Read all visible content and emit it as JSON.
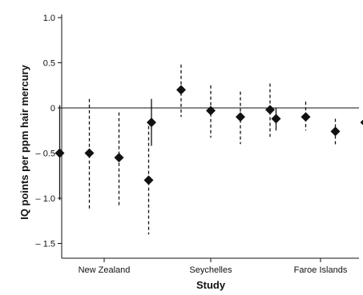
{
  "chart_data": {
    "type": "scatter",
    "title": "",
    "xlabel": "Study",
    "ylabel": "IQ points per ppm hair mercury",
    "ylim": [
      -1.55,
      1.0
    ],
    "yticks": [
      1.0,
      0.5,
      0,
      -0.5,
      -1.0,
      -1.5
    ],
    "ytick_labels": [
      "1.0",
      "0.5",
      "0",
      "– 0.5",
      "– 1.0",
      "– 1.5"
    ],
    "grid": false,
    "reference_line": 0,
    "marker": "diamond",
    "groups": [
      {
        "name": "New Zealand",
        "points": [
          {
            "estimate": -0.5,
            "lower": -1.02,
            "upper": 0.03,
            "line_style": "solid"
          },
          {
            "estimate": -0.5,
            "lower": -1.12,
            "upper": 0.1,
            "line_style": "dashed"
          },
          {
            "estimate": -0.55,
            "lower": -1.1,
            "upper": -0.05,
            "line_style": "dashed"
          },
          {
            "estimate": -0.8,
            "lower": -1.4,
            "upper": -0.2,
            "line_style": "dashed"
          }
        ]
      },
      {
        "name": "Seychelles",
        "points": [
          {
            "estimate": -0.16,
            "lower": -0.42,
            "upper": 0.1,
            "line_style": "solid"
          },
          {
            "estimate": 0.2,
            "lower": -0.1,
            "upper": 0.48,
            "line_style": "dashed"
          },
          {
            "estimate": -0.03,
            "lower": -0.33,
            "upper": 0.25,
            "line_style": "dashed"
          },
          {
            "estimate": -0.1,
            "lower": -0.4,
            "upper": 0.18,
            "line_style": "dashed"
          },
          {
            "estimate": -0.02,
            "lower": -0.32,
            "upper": 0.27,
            "line_style": "dashed"
          }
        ]
      },
      {
        "name": "Faroe Islands",
        "points": [
          {
            "estimate": -0.12,
            "lower": -0.25,
            "upper": 0.0,
            "line_style": "solid"
          },
          {
            "estimate": -0.1,
            "lower": -0.25,
            "upper": 0.07,
            "line_style": "dashed"
          },
          {
            "estimate": -0.26,
            "lower": -0.42,
            "upper": -0.12,
            "line_style": "dashed"
          },
          {
            "estimate": -0.16,
            "lower": -0.36,
            "upper": 0.02,
            "line_style": "dashed"
          }
        ]
      }
    ],
    "colors": {
      "marker": "#111111",
      "line": "#111111",
      "axis": "#111111"
    }
  }
}
